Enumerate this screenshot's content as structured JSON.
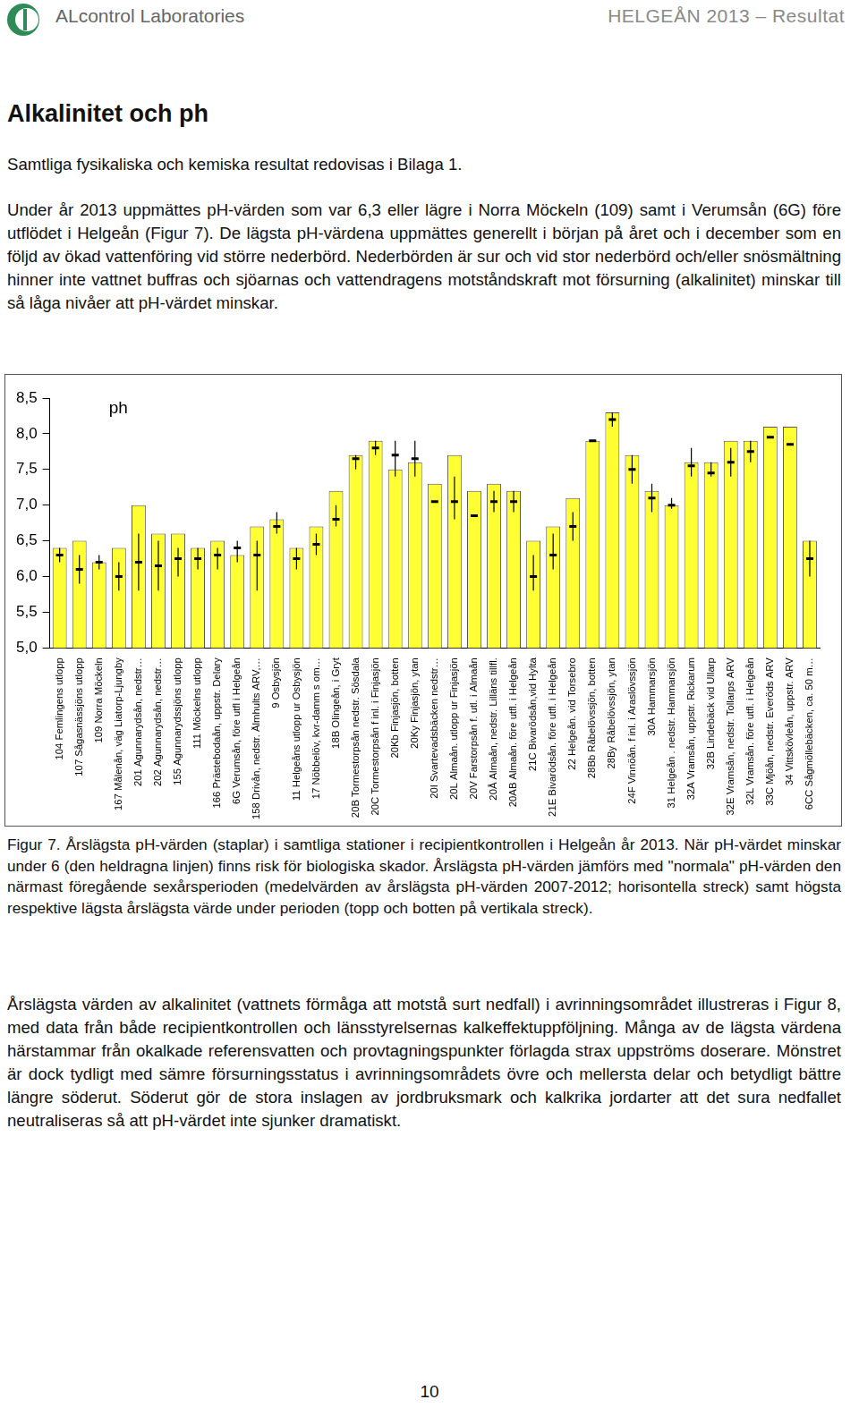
{
  "header": {
    "left": "ALcontrol Laboratories",
    "right": "HELGEÅN 2013 – Resultat"
  },
  "title": "Alkalinitet och ph",
  "paragraphs_before": [
    "Samtliga fysikaliska och kemiska resultat redovisas i Bilaga 1.",
    "Under år 2013 uppmättes pH-värden som var 6,3 eller lägre i Norra Möckeln (109) samt i Verumsån (6G) före utflödet i Helgeån (Figur 7). De lägsta pH-värdena uppmättes generellt i början på året och i december som en följd av ökad vattenföring vid större nederbörd. Nederbörden är sur och vid stor nederbörd och/eller snösmältning hinner inte vattnet buffras och sjöarnas och vattendragens motståndskraft mot försurning (alkalinitet) minskar till så låga nivåer att pH-värdet minskar."
  ],
  "chart_data": {
    "type": "bar",
    "annotation": "ph",
    "categories": [
      "104 Femlingens utlopp",
      "107 Sågasnässjöns utlopp",
      "109 Norra Möckeln",
      "167 Målenån, väg Liatorp-Ljungby",
      "201 Agunnarydsån, nedstr…",
      "202 Agunnarydsån, nedstr…",
      "155 Agunnarydssjöns utlopp",
      "111 Möckelns utlopp",
      "166 Prästebodaån, uppstr. Delary",
      "6G Verumsån, före utfl i Helgeån",
      "158 Drivån, nedstr. Älmhults ARV,…",
      "9 Osbysjön",
      "11 Helgeåns utlopp ur Osbysjön",
      "17 Nöbbelöv, kvr-damm s om…",
      "18B Olingeån, i Gryt",
      "20B Tormestorpsån nedstr. Sösdala",
      "20C Tormestorpsån f inl. i Finjasjön",
      "20Kb Finjasjön, botten",
      "20Ky Finjasjön, ytan",
      "20I Svartevadsbäcken nedstr…",
      "20L Almaån. utlopp ur Finjasjön",
      "20V Farstorpsån f. utl. i Almaån",
      "20Å Almaån, nedstr. Lilläns tillfl.",
      "20AB Almaån. före utfl. i Helgeån",
      "21C Bivarödsån,vid Hylta",
      "21E Bivarödsån. före utfl. i Helgeån",
      "22 Helgeån. vid Torsebro",
      "28Bb Råbelövssjön, botten",
      "28By Råbelövssjön, ytan",
      "24F Vinnöån. f inl. i Araslövssjön",
      "30A Hammarsjön",
      "31 Helgeån . nedstr. Hammarsjön",
      "32A Vramsån, uppstr. Rickarum",
      "32B Lindebäck vid Ullarp",
      "32E Vramsån, nedstr. Tollarps ARV",
      "32L Vramsån. före utfl. i Helgeån",
      "33C Mjöån, nedstr. Everöds ARV",
      "34 Vittskövleån, uppstr. ARV",
      "6CC Sågmöllebäcken, ca. 50 m…"
    ],
    "values": [
      6.4,
      6.5,
      6.2,
      6.4,
      7.0,
      6.6,
      6.6,
      6.4,
      6.5,
      6.3,
      6.7,
      6.8,
      6.4,
      6.7,
      7.2,
      7.7,
      7.9,
      7.5,
      7.6,
      7.3,
      7.7,
      7.2,
      7.3,
      7.2,
      6.5,
      6.7,
      7.1,
      7.9,
      8.3,
      7.7,
      7.2,
      7.0,
      7.6,
      7.6,
      7.9,
      7.9,
      8.1,
      8.1,
      6.5
    ],
    "normal_mean": [
      6.3,
      6.1,
      6.2,
      6.0,
      6.2,
      6.15,
      6.25,
      6.25,
      6.3,
      6.4,
      6.3,
      6.7,
      6.25,
      6.45,
      6.8,
      7.65,
      7.8,
      7.7,
      7.65,
      7.05,
      7.05,
      6.85,
      7.05,
      7.05,
      6.0,
      6.3,
      6.7,
      7.9,
      8.2,
      7.5,
      7.1,
      7.0,
      7.55,
      7.45,
      7.6,
      7.75,
      7.95,
      7.85,
      6.25
    ],
    "normal_max": [
      6.4,
      6.3,
      6.3,
      6.2,
      6.6,
      6.5,
      6.4,
      6.4,
      6.4,
      6.5,
      6.5,
      6.9,
      6.4,
      6.6,
      7.0,
      7.7,
      7.9,
      7.9,
      7.9,
      null,
      7.4,
      null,
      7.2,
      7.2,
      6.3,
      6.6,
      6.9,
      null,
      8.3,
      7.7,
      7.3,
      7.1,
      7.8,
      7.6,
      7.8,
      7.9,
      null,
      null,
      6.5
    ],
    "normal_min": [
      6.2,
      5.9,
      6.1,
      5.8,
      5.8,
      5.8,
      6.0,
      6.1,
      6.1,
      6.2,
      5.8,
      6.6,
      6.1,
      6.3,
      6.7,
      7.5,
      7.7,
      7.4,
      7.4,
      null,
      6.8,
      null,
      6.9,
      6.9,
      5.8,
      6.1,
      6.5,
      null,
      8.1,
      7.3,
      6.9,
      6.95,
      7.4,
      7.4,
      7.4,
      7.6,
      null,
      null,
      6.0
    ],
    "color": "#ffff33",
    "ylim": [
      5,
      8.5
    ],
    "yticks": [
      {
        "value": 5,
        "label": "5,0"
      },
      {
        "value": 5.5,
        "label": "5,5"
      },
      {
        "value": 6,
        "label": "6,0"
      },
      {
        "value": 6.5,
        "label": "6,5"
      },
      {
        "value": 7,
        "label": "7,0"
      },
      {
        "value": 7.5,
        "label": "7,5"
      },
      {
        "value": 8,
        "label": "8,0"
      },
      {
        "value": 8.5,
        "label": "8,5"
      }
    ],
    "grid": false
  },
  "caption": "Figur 7. Årslägsta pH-värden (staplar) i samtliga stationer i recipientkontrollen i Helgeån år 2013. När pH-värdet minskar under 6 (den heldragna linjen) finns risk för biologiska skador. Årslägsta pH-värden jämförs med \"normala\" pH-värden den närmast föregående sexårsperioden (medelvärden av årslägsta pH-värden 2007-2012; horisontella streck) samt högsta respektive lägsta årslägsta värde under perioden (topp och botten på vertikala streck).",
  "paragraphs_after": [
    "Årslägsta värden av alkalinitet (vattnets förmåga att motstå surt nedfall) i avrinningsområdet illustreras i Figur 8, med data från både recipientkontrollen och länsstyrelsernas kalkeffektuppföljning. Många av de lägsta värdena härstammar från okalkade referensvatten och provtagningspunkter förlagda strax uppströms doserare. Mönstret är dock tydligt med sämre försurningsstatus i avrinningsområdets övre och mellersta delar och betydligt bättre längre söderut. Söderut gör de stora inslagen av jordbruksmark och kalkrika jordarter att det sura nedfallet neutraliseras så att pH-värdet inte sjunker dramatiskt."
  ],
  "page_number": "10"
}
